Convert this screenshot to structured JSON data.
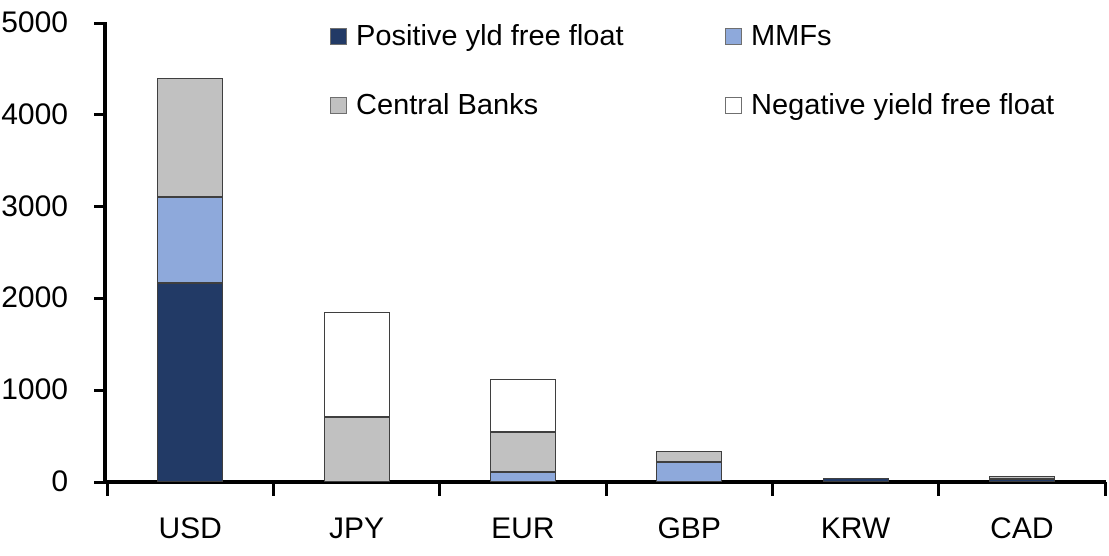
{
  "chart_data": {
    "type": "bar",
    "stacked": true,
    "title": "",
    "xlabel": "",
    "ylabel": "",
    "ylim": [
      0,
      5000
    ],
    "y_ticks": [
      0,
      1000,
      2000,
      3000,
      4000,
      5000
    ],
    "grid": false,
    "legend_position": "top",
    "categories": [
      "USD",
      "JPY",
      "EUR",
      "GBP",
      "KRW",
      "CAD"
    ],
    "series": [
      {
        "name": "Positive yld free float",
        "color": "#223A66",
        "values": [
          2170,
          0,
          0,
          0,
          45,
          30
        ]
      },
      {
        "name": "MMFs",
        "color": "#8EA9DB",
        "values": [
          940,
          0,
          110,
          220,
          0,
          0
        ]
      },
      {
        "name": "Central Banks",
        "color": "#C1C1C1",
        "values": [
          1290,
          710,
          435,
          115,
          0,
          35
        ]
      },
      {
        "name": "Negative yield free float",
        "color": "#FFFFFF",
        "values": [
          0,
          1140,
          575,
          0,
          0,
          0
        ]
      }
    ],
    "totals": [
      4400,
      1850,
      1120,
      335,
      45,
      65
    ],
    "bar_border_color": "#3F3F3F",
    "axis_color": "#000000"
  }
}
